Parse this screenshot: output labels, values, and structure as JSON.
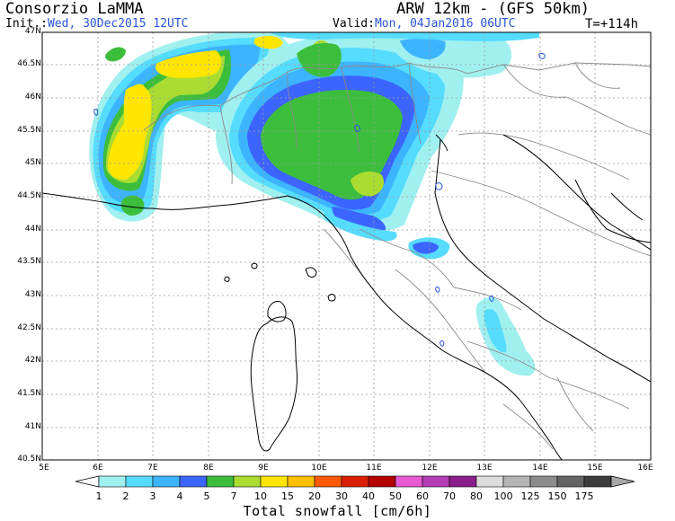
{
  "header": {
    "org": "Consorzio LaMMA",
    "model": "ARW 12km - (GFS 50km)",
    "init_label": "Init.:",
    "init_value": "Wed, 30Dec2015 12UTC",
    "valid_label": "Valid:",
    "valid_value": "Mon, 04Jan2016 06UTC",
    "lead": "T=+114h"
  },
  "map": {
    "lat_labels": [
      "47N",
      "46.5N",
      "46N",
      "45.5N",
      "45N",
      "44.5N",
      "44N",
      "43.5N",
      "43N",
      "42.5N",
      "42N",
      "41.5N",
      "41N",
      "40.5N"
    ],
    "lon_labels": [
      "5E",
      "6E",
      "7E",
      "8E",
      "9E",
      "10E",
      "11E",
      "12E",
      "13E",
      "14E",
      "15E",
      "16E"
    ],
    "land_color": "#ffffff",
    "grid_style": "dashed gray",
    "coastline_color": "#000000",
    "border_color": "#888888"
  },
  "colorbar": {
    "levels": [
      "1",
      "2",
      "3",
      "4",
      "5",
      "7",
      "10",
      "15",
      "20",
      "30",
      "40",
      "50",
      "60",
      "70",
      "80",
      "100",
      "125",
      "150",
      "175"
    ],
    "colors": [
      "#a0f0f0",
      "#55dcff",
      "#3cb4ff",
      "#3c64ff",
      "#3cbe3c",
      "#aadc32",
      "#ffe600",
      "#ffbe00",
      "#ff5a00",
      "#dc1e00",
      "#b40000",
      "#e85ad2",
      "#b43cb4",
      "#8c1e8c",
      "#dcdcdc",
      "#b4b4b4",
      "#8c8c8c",
      "#646464",
      "#3c3c3c"
    ],
    "title": "Total snowfall [cm/6h]"
  }
}
